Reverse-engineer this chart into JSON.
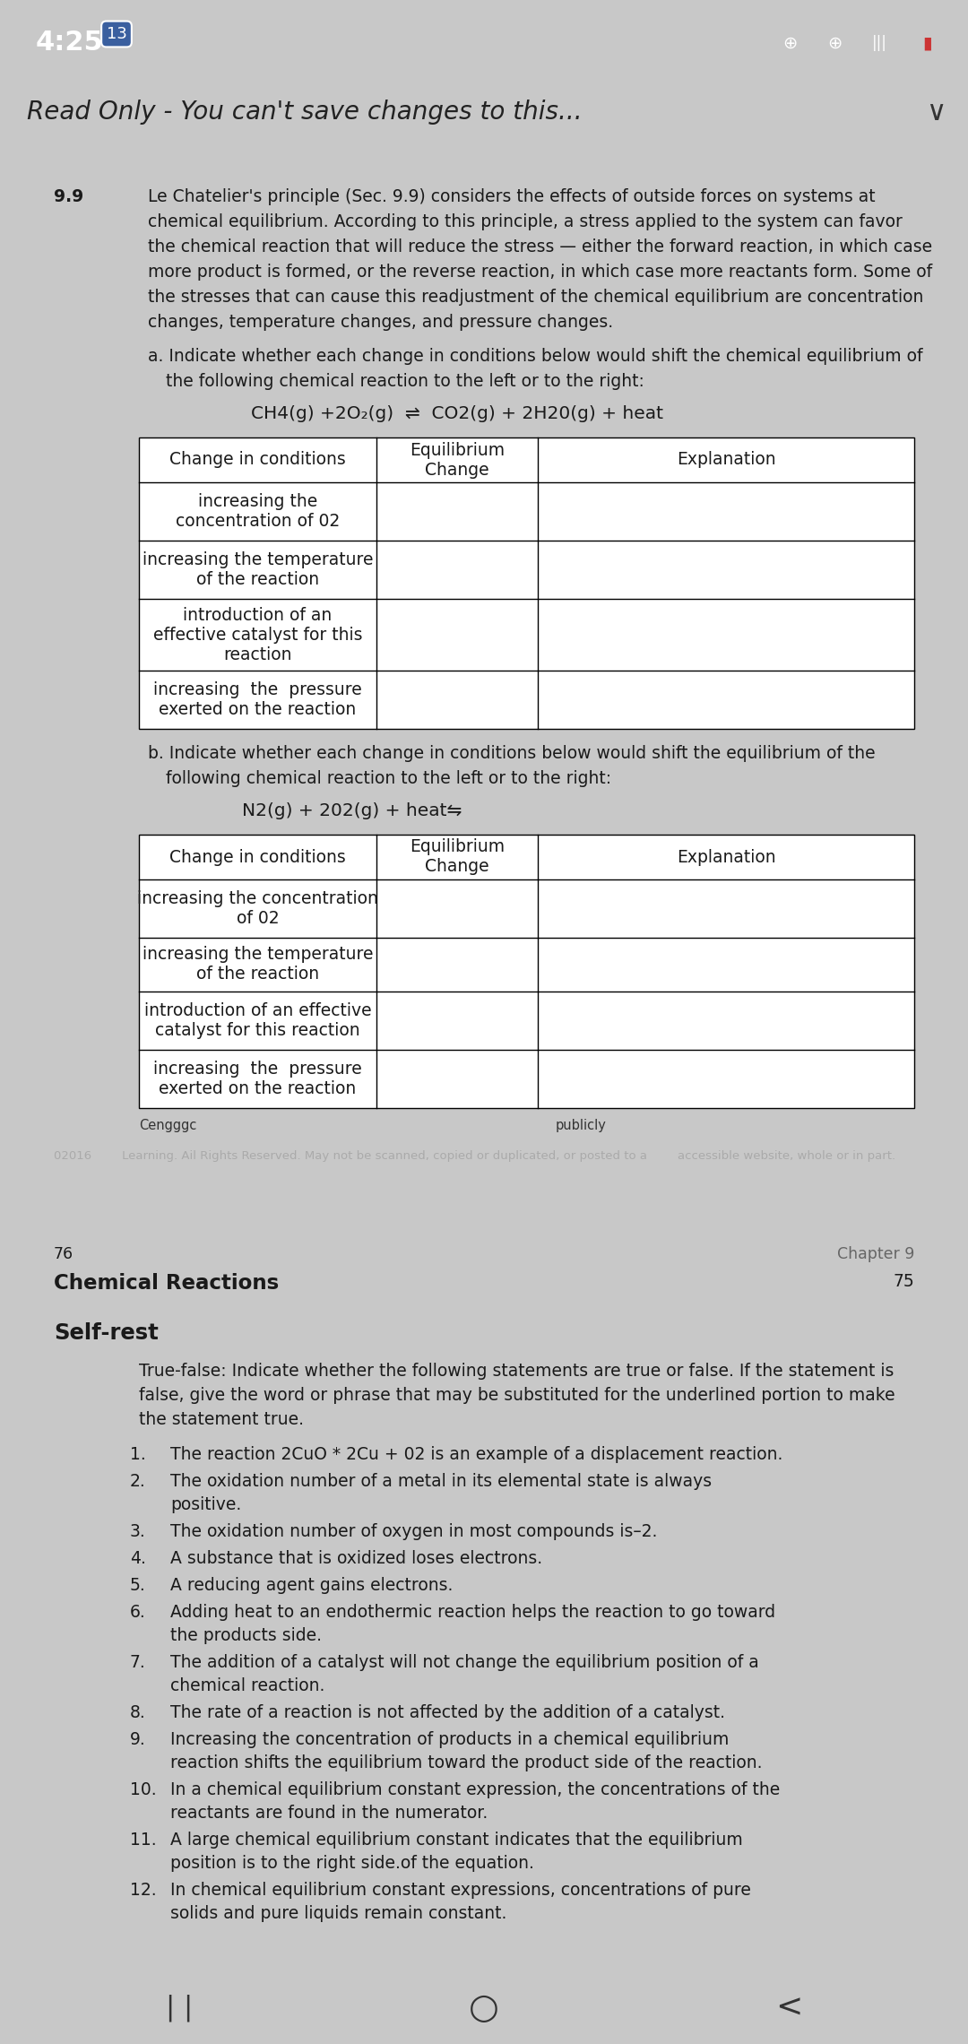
{
  "bg_top_bar": "#3a5f9f",
  "bg_header": "#e0e0e0",
  "bg_page": "#ffffff",
  "bg_separator": "#c8c8c8",
  "text_color": "#1a1a1a",
  "gray_text": "#888888",
  "time_text": "4:25",
  "notif_num": "13",
  "header_text": "Read Only - You can't save changes to this...",
  "section_num": "9.9",
  "intro_text": "Le Chatelier's principle (Sec. 9.9) considers the effects of outside forces on systems at\nchemical equilibrium. According to this principle, a stress applied to the system can favor\nthe chemical reaction that will reduce the stress — either the forward reaction, in which case\nmore product is formed, or the reverse reaction, in which case more reactants form. Some of\nthe stresses that can cause this readjustment of the chemical equilibrium are concentration\nchanges, temperature changes, and pressure changes.",
  "part_a_intro": "a. Indicate whether each change in conditions below would shift the chemical equilibrium of\n   the following chemical reaction to the left or to the right:",
  "reaction_a": "CH4(g) +2O₂(g)  ⇌  CO2(g) + 2H20(g) + heat",
  "table_a_headers": [
    "Change in conditions",
    "Equilibrium\nChange",
    "Explanation"
  ],
  "table_a_rows": [
    "increasing the\nconcentration of 02",
    "increasing the temperature\nof the reaction",
    "introduction of an\neffective catalyst for this\nreaction",
    "increasing  the  pressure\nexerted on the reaction"
  ],
  "part_b_intro": "b. Indicate whether each change in conditions below would shift the equilibrium of the\n   following chemical reaction to the left or to the right:",
  "reaction_b": "N2(g) + 202(g) + heat⇋",
  "table_b_headers": [
    "Change in conditions",
    "Equilibrium\nChange",
    "Explanation"
  ],
  "table_b_rows": [
    "increasing the concentration\nof 02",
    "increasing the temperature\nof the reaction",
    "introduction of an effective\ncatalyst for this reaction",
    "increasing  the  pressure\nexerted on the reaction"
  ],
  "footer_left": "Cengggc",
  "footer_right": "publicly",
  "copyright_text": "02016        Learning. Ail Rights Reserved. May not be scanned, copied or duplicated, or posted to a        accessible website, whole or in part.",
  "page2_left": "76",
  "page2_right": "Chapter 9",
  "page2_title": "Chemical Reactions",
  "page2_rightnum": "75",
  "self_rest_title": "Self-rest",
  "self_rest_intro": "True-false: Indicate whether the following statements are true or false. If the statement is\nfalse, give the word or phrase that may be substituted for the underlined portion to make\nthe statement true.",
  "items": [
    {
      "num": "1.",
      "text": "The reaction 2CuO * 2Cu + 02 is an example of a ",
      "underline": "displacement",
      "rest": " reaction.",
      "bold_num": true
    },
    {
      "num": "2.",
      "text": "The oxidation number of a metal in its elemental state is always ",
      "underline": "positive",
      "rest": ".",
      "bold_num": false
    },
    {
      "num": "3.",
      "text": "The oxidation number of oxygen in most compounds is–2.",
      "underline": "",
      "rest": "",
      "bold_num": false
    },
    {
      "num": "4.",
      "text": "A substance that is ",
      "underline": "oxidized",
      "rest": " loses electrons.",
      "bold_num": false
    },
    {
      "num": "5.",
      "text": "A reducing agent ",
      "underline": "gains",
      "rest": " electrons.",
      "bold_num": true
    },
    {
      "num": "6.",
      "text": "Adding heat to an ",
      "underline": "endothermic",
      "rest": " reaction helps the reaction to go toward the products side.",
      "bold_num": true
    },
    {
      "num": "7.",
      "text": "The addition of a catalyst ",
      "underline": "will not change",
      "rest": " the equilibrium position of a chemical reaction.",
      "bold_num": false
    },
    {
      "num": "8.",
      "text": "The rate of a reaction is ",
      "underline": "not affected",
      "rest": " by the addition of a catalyst.",
      "bold_num": true
    },
    {
      "num": "9.",
      "text": "Increasing the concentration of products in a chemical equilibrium reaction shifts the equilibrium toward the ",
      "underline": "product side",
      "rest": " of the reaction.",
      "bold_num": false
    },
    {
      "num": "10.",
      "text": "In a chemical equilibrium constant expression, the concentrations of the reactants are found in the ",
      "underline": "numerator",
      "rest": ".",
      "bold_num": false
    },
    {
      "num": "11.",
      "text": "A large chemical equilibrium constant indicates that the equilibrium position is to the ",
      "underline": "right side",
      "rest": ".of the equation.",
      "bold_num": false
    },
    {
      "num": "12.",
      "text": "In chemical equilibrium constant expressions, concentrations of ",
      "underline": "pure solids and pure liquids",
      "rest": " remain constant.",
      "bold_num": false
    }
  ]
}
